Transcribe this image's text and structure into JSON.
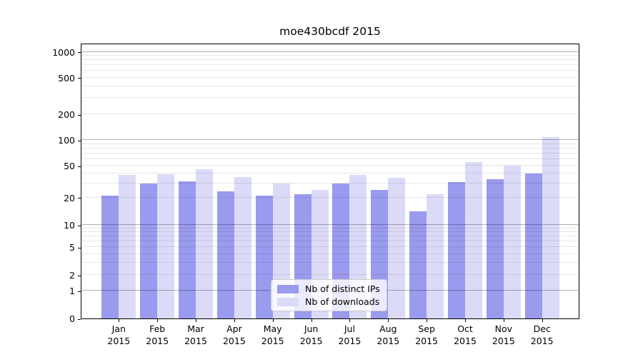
{
  "chart_data": {
    "type": "bar",
    "title": "moe430bcdf 2015",
    "categories": [
      "Jan",
      "Feb",
      "Mar",
      "Apr",
      "May",
      "Jun",
      "Jul",
      "Aug",
      "Sep",
      "Oct",
      "Nov",
      "Dec"
    ],
    "year_label": "2015",
    "series": [
      {
        "name": "Nb of distinct IPs",
        "color": "#9a9aee",
        "values": [
          21,
          30,
          32,
          24,
          21,
          22,
          30,
          25,
          14,
          31,
          34,
          40
        ]
      },
      {
        "name": "Nb of downloads",
        "color": "#dbdbf8",
        "values": [
          38,
          39,
          45,
          36,
          30,
          25,
          38,
          35,
          22,
          55,
          50,
          109
        ]
      }
    ],
    "yscale": "symlog",
    "ytick_labels": [
      "0",
      "1",
      "2",
      "5",
      "10",
      "20",
      "50",
      "100",
      "200",
      "500",
      "1000"
    ],
    "ylim": [
      0,
      1250
    ],
    "grid": "major+minor",
    "legend": {
      "position": "lower center",
      "entries": [
        "Nb of distinct IPs",
        "Nb of downloads"
      ]
    }
  },
  "colors": {
    "bar_distinct_ips": "#9a9aee",
    "bar_downloads": "#dbdbf8",
    "grid_major": "#b3b3b3",
    "grid_minor": "#e6e6e6",
    "axis": "#000000",
    "legend_border": "#cbcbcb",
    "background": "#ffffff"
  }
}
